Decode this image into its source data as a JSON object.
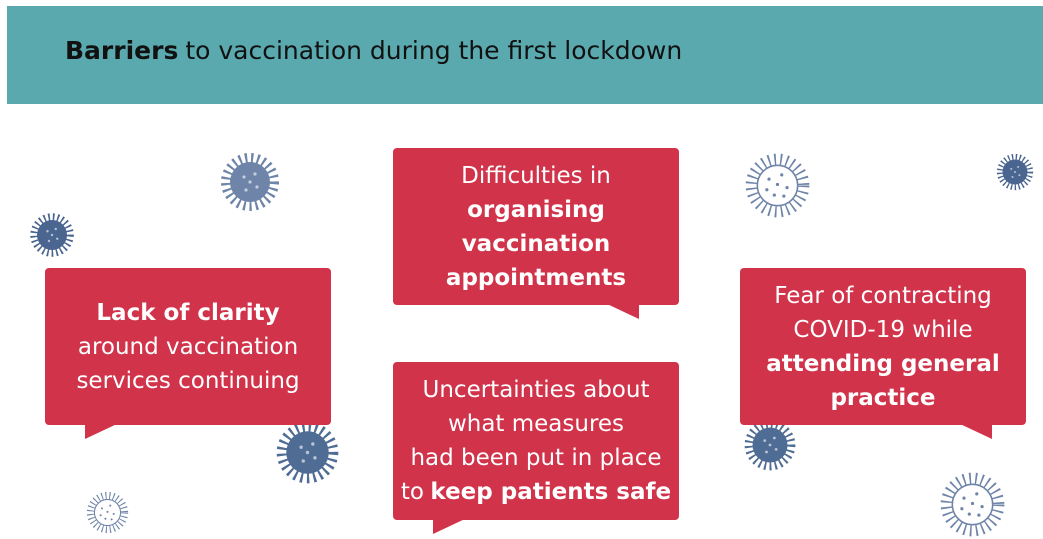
{
  "header": {
    "title": [
      {
        "text": "Barriers",
        "bold": true
      },
      {
        "text": "to vaccination during the first lockdown"
      }
    ]
  },
  "bubbles": [
    {
      "lines": [
        [
          {
            "text": "Lack of clarity",
            "bold": true
          }
        ],
        [
          {
            "text": "around vaccination"
          }
        ],
        [
          {
            "text": "services continuing"
          }
        ]
      ]
    },
    {
      "lines": [
        [
          {
            "text": "Difficulties in"
          }
        ],
        [
          {
            "text": "organising",
            "bold": true
          }
        ],
        [
          {
            "text": "vaccination",
            "bold": true
          }
        ],
        [
          {
            "text": "appointments",
            "bold": true
          }
        ]
      ]
    },
    {
      "lines": [
        [
          {
            "text": "Uncertainties about"
          }
        ],
        [
          {
            "text": "what measures"
          }
        ],
        [
          {
            "text": "had been put in place"
          }
        ],
        [
          {
            "text": "to"
          },
          {
            "text": "keep patients safe",
            "bold": true
          }
        ]
      ]
    },
    {
      "lines": [
        [
          {
            "text": "Fear of contracting"
          }
        ],
        [
          {
            "text": "COVID-19 while"
          }
        ],
        [
          {
            "text": "attending general",
            "bold": true
          }
        ],
        [
          {
            "text": "practice",
            "bold": true
          }
        ]
      ]
    }
  ]
}
